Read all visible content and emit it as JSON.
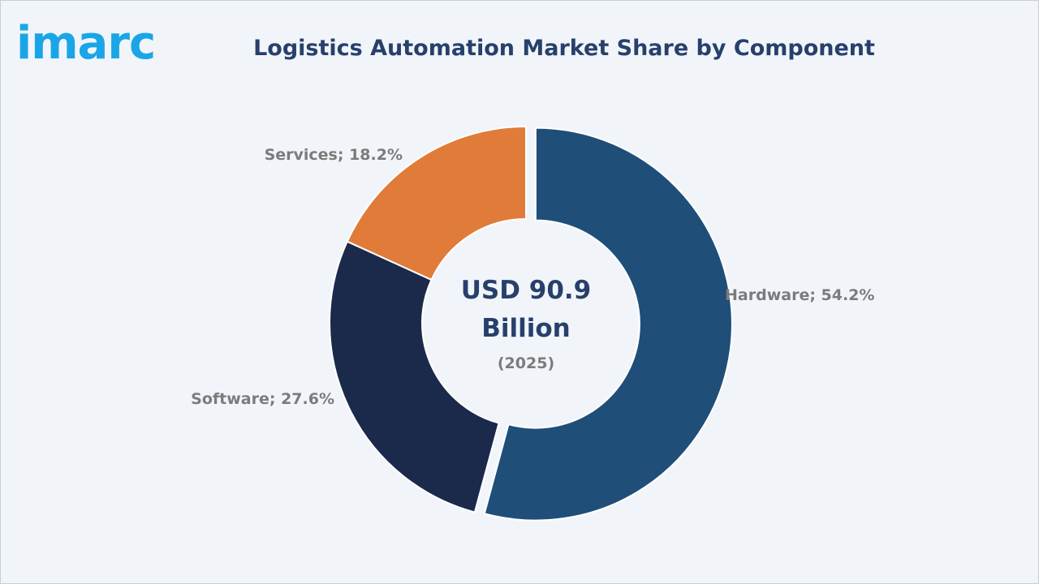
{
  "brand": {
    "logo_text": "imarc",
    "logo_color": "#1aa6e6"
  },
  "chart_data": {
    "type": "pie",
    "style": "donut",
    "title": "Logistics Automation Market Share by Component",
    "center_value": "USD 90.9\nBillion",
    "center_lines": [
      "USD 90.9",
      "Billion"
    ],
    "center_year": "(2025)",
    "unit": "%",
    "start": "12 o'clock, clockwise",
    "exploded": "Hardware",
    "slices": [
      {
        "name": "Hardware",
        "value": 54.2,
        "label": "Hardware; 54.2%",
        "color": "#1f4e79"
      },
      {
        "name": "Software",
        "value": 27.6,
        "label": "Software; 27.6%",
        "color": "#1b2a4b"
      },
      {
        "name": "Services",
        "value": 18.2,
        "label": "Services; 18.2%",
        "color": "#e07b39"
      }
    ]
  }
}
